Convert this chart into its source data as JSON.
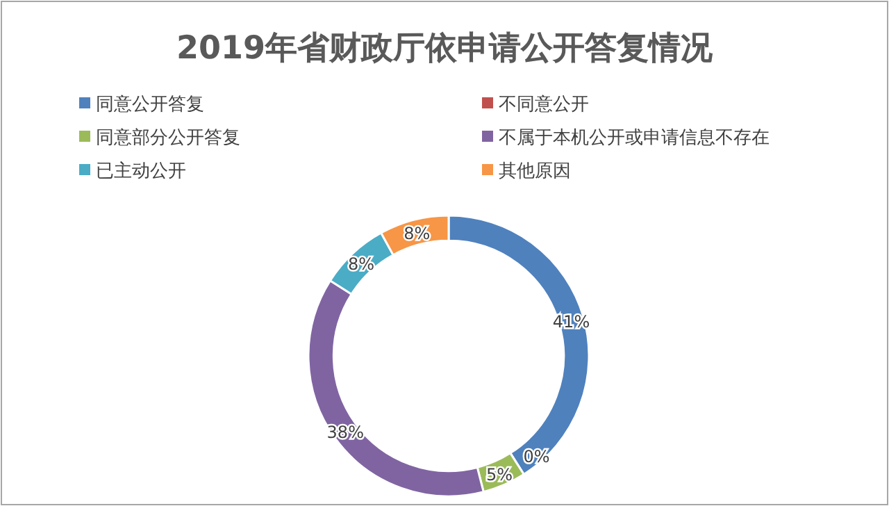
{
  "chart_data": {
    "type": "donut",
    "title": "2019年省财政厅依申请公开答复情况",
    "categories": [
      "同意公开答复",
      "不同意公开",
      "同意部分公开答复",
      "不属于本机公开或申请信息不存在",
      "已主动公开",
      "其他原因"
    ],
    "values": [
      41,
      0,
      5,
      38,
      8,
      8
    ],
    "colors": [
      "#4f81bd",
      "#c0504d",
      "#9bbb59",
      "#8064a2",
      "#4bacc6",
      "#f79646"
    ],
    "value_labels": [
      "41%",
      "0%",
      "5%",
      "38%",
      "8%",
      "8%"
    ],
    "legend": "top"
  }
}
